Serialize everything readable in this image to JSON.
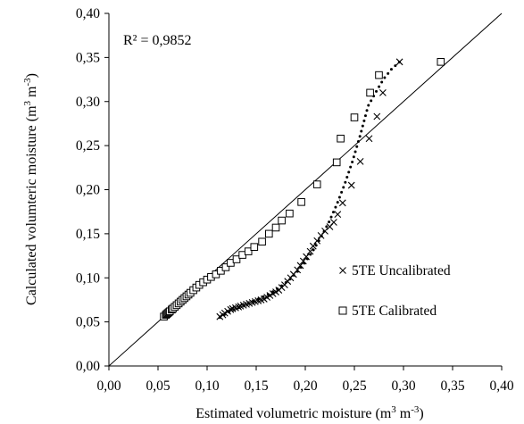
{
  "chart_data": {
    "type": "scatter",
    "xlabel": "Estimated volumetric moisture (m3 m-3)",
    "ylabel": "Calculated volumteric moisture (m3 m-3)",
    "xlim": [
      0,
      0.4
    ],
    "ylim": [
      0,
      0.4
    ],
    "x_ticks": [
      "0,00",
      "0,05",
      "0,10",
      "0,15",
      "0,20",
      "0,25",
      "0,30",
      "0,35",
      "0,40"
    ],
    "y_ticks": [
      "0,00",
      "0,05",
      "0,10",
      "0,15",
      "0,20",
      "0,25",
      "0,30",
      "0,35",
      "0,40"
    ],
    "annotation": "R² = 0,9852",
    "legend_position": "bottom-right",
    "reference_line": {
      "x": [
        0,
        0.4
      ],
      "y": [
        0,
        0.4
      ]
    },
    "series": [
      {
        "name": "5TE Uncalibrated",
        "marker": "x",
        "color": "#000000",
        "x": [
          0.113,
          0.116,
          0.118,
          0.121,
          0.124,
          0.126,
          0.129,
          0.132,
          0.134,
          0.137,
          0.14,
          0.143,
          0.146,
          0.149,
          0.152,
          0.155,
          0.158,
          0.161,
          0.164,
          0.167,
          0.17,
          0.173,
          0.176,
          0.179,
          0.182,
          0.185,
          0.188,
          0.192,
          0.195,
          0.198,
          0.201,
          0.205,
          0.208,
          0.212,
          0.216,
          0.22,
          0.225,
          0.229,
          0.233,
          0.238,
          0.247,
          0.256,
          0.265,
          0.273,
          0.279,
          0.296
        ],
        "y": [
          0.056,
          0.058,
          0.06,
          0.062,
          0.064,
          0.065,
          0.066,
          0.067,
          0.068,
          0.069,
          0.07,
          0.071,
          0.072,
          0.073,
          0.074,
          0.075,
          0.076,
          0.078,
          0.08,
          0.082,
          0.084,
          0.086,
          0.089,
          0.092,
          0.096,
          0.1,
          0.104,
          0.109,
          0.114,
          0.119,
          0.124,
          0.13,
          0.136,
          0.142,
          0.148,
          0.153,
          0.158,
          0.163,
          0.172,
          0.185,
          0.205,
          0.232,
          0.258,
          0.283,
          0.31,
          0.345
        ]
      },
      {
        "name": "5TE Calibrated",
        "marker": "square",
        "color": "#000000",
        "x": [
          0.056,
          0.058,
          0.059,
          0.06,
          0.061,
          0.062,
          0.064,
          0.065,
          0.067,
          0.069,
          0.071,
          0.073,
          0.075,
          0.077,
          0.079,
          0.081,
          0.083,
          0.086,
          0.089,
          0.092,
          0.096,
          0.1,
          0.104,
          0.109,
          0.114,
          0.119,
          0.124,
          0.13,
          0.136,
          0.142,
          0.148,
          0.156,
          0.163,
          0.17,
          0.176,
          0.184,
          0.196,
          0.212,
          0.232,
          0.236,
          0.25,
          0.266,
          0.275,
          0.338
        ],
        "y": [
          0.056,
          0.058,
          0.059,
          0.06,
          0.061,
          0.062,
          0.064,
          0.065,
          0.067,
          0.069,
          0.071,
          0.073,
          0.075,
          0.077,
          0.079,
          0.081,
          0.083,
          0.086,
          0.089,
          0.092,
          0.095,
          0.098,
          0.101,
          0.104,
          0.108,
          0.112,
          0.117,
          0.121,
          0.126,
          0.13,
          0.135,
          0.141,
          0.15,
          0.157,
          0.165,
          0.173,
          0.186,
          0.206,
          0.231,
          0.258,
          0.282,
          0.31,
          0.33,
          0.345
        ]
      },
      {
        "name": "",
        "marker": "dotted-line",
        "color": "#000000",
        "x": [
          0.113,
          0.12,
          0.128,
          0.136,
          0.144,
          0.152,
          0.16,
          0.168,
          0.176,
          0.184,
          0.192,
          0.2,
          0.208,
          0.216,
          0.224,
          0.232,
          0.24,
          0.248,
          0.256,
          0.264,
          0.272,
          0.28,
          0.288,
          0.296
        ],
        "y": [
          0.055,
          0.06,
          0.064,
          0.068,
          0.072,
          0.076,
          0.08,
          0.085,
          0.091,
          0.098,
          0.107,
          0.118,
          0.131,
          0.146,
          0.163,
          0.183,
          0.206,
          0.232,
          0.262,
          0.295,
          0.311,
          0.326,
          0.337,
          0.345
        ]
      }
    ]
  }
}
